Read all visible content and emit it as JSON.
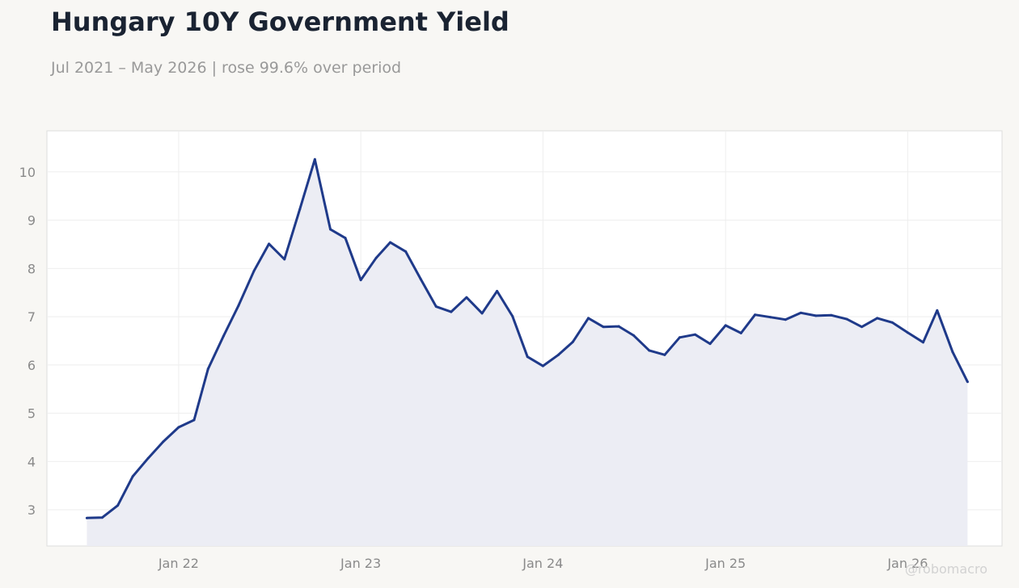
{
  "header": {
    "title": "Hungary 10Y Government Yield",
    "subtitle": "Jul 2021 – May 2026 | rose 99.6% over period"
  },
  "watermark": "@robomacro",
  "colors": {
    "background": "#f8f7f4",
    "plot_background": "#ffffff",
    "line": "#1f3a8a",
    "area_fill": "#ecedf4",
    "grid": "#eeeeee"
  },
  "chart_data": {
    "type": "area",
    "title": "Hungary 10Y Government Yield",
    "subtitle": "Jul 2021 – May 2026 | rose 99.6% over period",
    "xlabel": "",
    "ylabel": "",
    "x_tick_labels": [
      "Jan 22",
      "Jan 23",
      "Jan 24",
      "Jan 25",
      "Jan 26"
    ],
    "y_tick_labels": [
      "3",
      "4",
      "5",
      "6",
      "7",
      "8",
      "9",
      "10"
    ],
    "ylim": [
      2.25,
      10.85
    ],
    "xlim": [
      "2021-04-12",
      "2026-07-09"
    ],
    "grid": true,
    "legend": "none",
    "series": [
      {
        "x": [
          "2021-07",
          "2021-08",
          "2021-09",
          "2021-10",
          "2021-11",
          "2021-12",
          "2022-01",
          "2022-02",
          "2022-03",
          "2022-04",
          "2022-05",
          "2022-06",
          "2022-07",
          "2022-08",
          "2022-09",
          "2022-10",
          "2022-11",
          "2022-12",
          "2023-01",
          "2023-02",
          "2023-03",
          "2023-04",
          "2023-05",
          "2023-06",
          "2023-07",
          "2023-08",
          "2023-09",
          "2023-10",
          "2023-11",
          "2023-12",
          "2024-01",
          "2024-02",
          "2024-03",
          "2024-04",
          "2024-05",
          "2024-06",
          "2024-07",
          "2024-08",
          "2024-09",
          "2024-10",
          "2024-11",
          "2024-12",
          "2025-01",
          "2025-02",
          "2025-03",
          "2025-04",
          "2025-05",
          "2025-06",
          "2025-07",
          "2025-08",
          "2025-09",
          "2025-10",
          "2025-11",
          "2025-12",
          "2026-01",
          "2026-02",
          "2026-03",
          "2026-04",
          "2026-05"
        ],
        "values": [
          2.83,
          2.84,
          3.09,
          3.69,
          4.07,
          4.41,
          4.71,
          4.86,
          5.92,
          6.6,
          7.23,
          7.95,
          8.51,
          8.19,
          9.23,
          10.26,
          8.81,
          8.63,
          7.76,
          8.22,
          8.54,
          8.35,
          7.78,
          7.21,
          7.1,
          7.4,
          7.07,
          7.53,
          7.01,
          6.17,
          5.98,
          6.21,
          6.48,
          6.97,
          6.79,
          6.8,
          6.61,
          6.3,
          6.21,
          6.57,
          6.63,
          6.44,
          6.82,
          6.66,
          7.04,
          6.99,
          6.94,
          7.08,
          7.02,
          7.03,
          6.95,
          6.79,
          6.97,
          6.88,
          6.67,
          6.47,
          7.13,
          6.27,
          5.65
        ]
      }
    ]
  }
}
